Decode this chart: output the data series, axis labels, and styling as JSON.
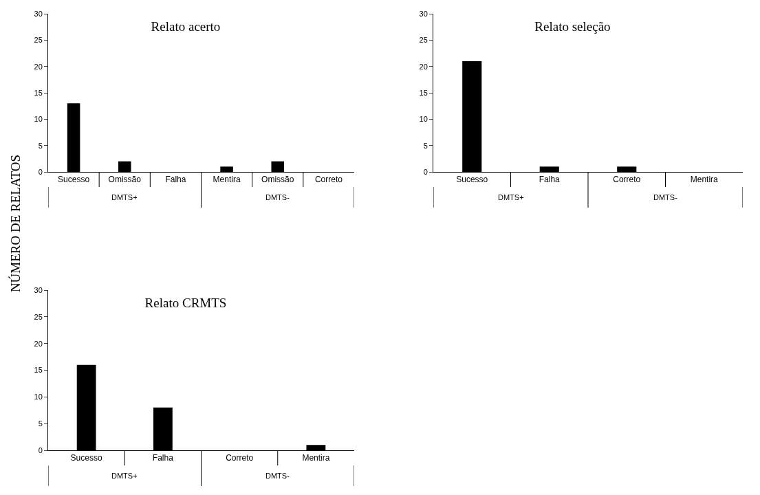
{
  "chart_data": [
    {
      "type": "bar",
      "title": "Relato acerto",
      "ylabel": "NÚMERO DE RELATOS",
      "categories": [
        "Sucesso",
        "Omissão",
        "Falha",
        "Mentira",
        "Omissão",
        "Correto"
      ],
      "values": [
        13,
        2,
        0,
        1,
        2,
        0
      ],
      "color": "#000000",
      "ylim": [
        0,
        30
      ],
      "yticks": [
        0,
        5,
        10,
        15,
        20,
        25,
        30
      ],
      "grid": false,
      "annotations": [
        "DMTS+",
        "DMTS-"
      ]
    },
    {
      "type": "bar",
      "title": "Relato seleção",
      "categories": [
        "Sucesso",
        "Falha",
        "Correto",
        "Mentira"
      ],
      "values": [
        21,
        1,
        1,
        0
      ],
      "color": "#000000",
      "ylim": [
        0,
        30
      ],
      "yticks": [
        0,
        5,
        10,
        15,
        20,
        25,
        30
      ],
      "grid": false,
      "annotations": [
        "DMTS+",
        "DMTS-"
      ]
    },
    {
      "type": "bar",
      "title": "Relato CRMTS",
      "categories": [
        "Sucesso",
        "Falha",
        "Correto",
        "Mentira"
      ],
      "values": [
        16,
        8,
        0,
        1
      ],
      "color": "#000000",
      "ylim": [
        0,
        30
      ],
      "yticks": [
        0,
        5,
        10,
        15,
        20,
        25,
        30
      ],
      "grid": false,
      "annotations": [
        "DMTS+",
        "DMTS-"
      ]
    }
  ]
}
